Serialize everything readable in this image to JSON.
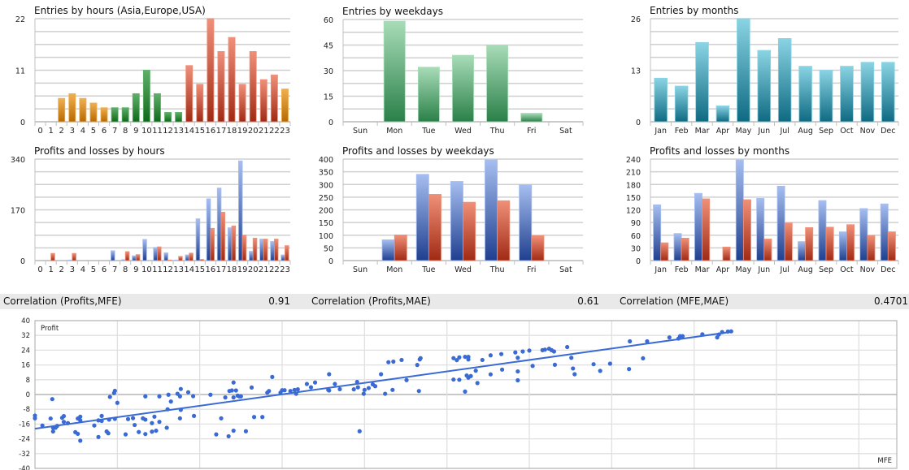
{
  "colors": {
    "Asia": [
      "#f0b050",
      "#b86a00"
    ],
    "Europe": [
      "#5fb06a",
      "#0f6a1a"
    ],
    "USA": [
      "#f0907a",
      "#a02a14"
    ],
    "profit": [
      "#a6bef0",
      "#1f3f8f"
    ],
    "loss": [
      "#f09078",
      "#a02a14"
    ],
    "weekday": [
      "#a8dcb8",
      "#2a8048"
    ],
    "month": [
      "#8ad4e4",
      "#0e6a82"
    ],
    "scatter": "#3a6ad4"
  },
  "chart_data": [
    {
      "type": "bar",
      "title": "Entries by hours (Asia,Europe,USA)",
      "categories": [
        "0",
        "1",
        "2",
        "3",
        "4",
        "5",
        "6",
        "7",
        "8",
        "9",
        "10",
        "11",
        "12",
        "13",
        "14",
        "15",
        "16",
        "17",
        "18",
        "19",
        "20",
        "21",
        "22",
        "23"
      ],
      "series": [
        {
          "name": "Entries",
          "values": [
            0,
            0,
            5,
            6,
            5,
            4,
            3,
            3,
            3,
            6,
            11,
            6,
            2,
            2,
            12,
            8,
            22,
            15,
            18,
            8,
            15,
            9,
            10,
            7
          ]
        }
      ],
      "bar_regions": [
        "Asia",
        "Asia",
        "Asia",
        "Asia",
        "Asia",
        "Asia",
        "Asia",
        "Europe",
        "Europe",
        "Europe",
        "Europe",
        "Europe",
        "Europe",
        "Europe",
        "USA",
        "USA",
        "USA",
        "USA",
        "USA",
        "USA",
        "USA",
        "USA",
        "USA",
        "Asia"
      ],
      "ylim": [
        0,
        22
      ],
      "yticks": [
        0,
        11,
        22
      ],
      "grid_divisions": 8,
      "grid": true
    },
    {
      "type": "bar",
      "title": "Entries by weekdays",
      "categories": [
        "Sun",
        "Mon",
        "Tue",
        "Wed",
        "Thu",
        "Fri",
        "Sat"
      ],
      "series": [
        {
          "name": "Entries",
          "values": [
            0,
            59,
            32,
            39,
            45,
            5,
            0
          ],
          "color": "weekday"
        }
      ],
      "ylim": [
        0,
        60
      ],
      "yticks": [
        0,
        15,
        30,
        45,
        60
      ],
      "grid_divisions": 8,
      "grid": true
    },
    {
      "type": "bar",
      "title": "Entries by months",
      "categories": [
        "Jan",
        "Feb",
        "Mar",
        "Apr",
        "May",
        "Jun",
        "Jul",
        "Aug",
        "Sep",
        "Oct",
        "Nov",
        "Dec"
      ],
      "series": [
        {
          "name": "Entries",
          "values": [
            11,
            9,
            20,
            4,
            26,
            18,
            21,
            14,
            13,
            14,
            15,
            15
          ],
          "color": "month"
        }
      ],
      "ylim": [
        0,
        26
      ],
      "yticks": [
        0,
        13,
        26
      ],
      "grid_divisions": 8,
      "grid": true
    },
    {
      "type": "bar",
      "title": "Profits and losses by hours",
      "categories": [
        "0",
        "1",
        "2",
        "3",
        "4",
        "5",
        "6",
        "7",
        "8",
        "9",
        "10",
        "11",
        "12",
        "13",
        "14",
        "15",
        "16",
        "17",
        "18",
        "19",
        "20",
        "21",
        "22",
        "23"
      ],
      "series": [
        {
          "name": "Profits",
          "values": [
            0,
            0,
            0,
            2,
            0,
            0,
            0,
            33,
            3,
            16,
            71,
            44,
            26,
            2,
            19,
            140,
            207,
            243,
            110,
            334,
            31,
            72,
            64,
            19
          ],
          "color": "profit"
        },
        {
          "name": "Losses",
          "values": [
            0,
            24,
            0,
            24,
            0,
            0,
            0,
            0,
            30,
            20,
            0,
            46,
            2,
            14,
            25,
            4,
            108,
            162,
            116,
            85,
            75,
            72,
            72,
            50
          ],
          "color": "loss"
        }
      ],
      "ylim": [
        0,
        340
      ],
      "yticks": [
        0,
        170,
        340
      ],
      "grid_divisions": 8,
      "grid": true
    },
    {
      "type": "bar",
      "title": "Profits and losses by weekdays",
      "categories": [
        "Sun",
        "Mon",
        "Tue",
        "Wed",
        "Thu",
        "Fri",
        "Sat"
      ],
      "series": [
        {
          "name": "Profits",
          "values": [
            0,
            82,
            340,
            312,
            397,
            299,
            0
          ],
          "color": "profit"
        },
        {
          "name": "Losses",
          "values": [
            0,
            101,
            261,
            230,
            236,
            98,
            0
          ],
          "color": "loss"
        }
      ],
      "ylim": [
        0,
        400
      ],
      "yticks": [
        0,
        50,
        100,
        150,
        200,
        250,
        300,
        350,
        400
      ],
      "grid_divisions": 8,
      "grid": true
    },
    {
      "type": "bar",
      "title": "Profits and losses by months",
      "categories": [
        "Jan",
        "Feb",
        "Mar",
        "Apr",
        "May",
        "Jun",
        "Jul",
        "Aug",
        "Sep",
        "Oct",
        "Nov",
        "Dec"
      ],
      "series": [
        {
          "name": "Profits",
          "values": [
            132,
            64,
            159,
            0,
            238,
            147,
            176,
            45,
            142,
            68,
            123,
            134
          ],
          "color": "profit"
        },
        {
          "name": "Losses",
          "values": [
            42,
            53,
            146,
            32,
            144,
            51,
            89,
            78,
            79,
            85,
            59,
            68
          ],
          "color": "loss"
        }
      ],
      "ylim": [
        0,
        240
      ],
      "yticks": [
        0,
        30,
        60,
        90,
        120,
        150,
        180,
        210,
        240
      ],
      "grid_divisions": 8,
      "grid": true
    },
    {
      "type": "scatter",
      "xlabel": "MFE",
      "ylabel": "Profit",
      "ylim": [
        -40,
        40
      ],
      "yticks": [
        -40,
        -32,
        -24,
        -16,
        -8,
        0,
        8,
        16,
        24,
        32,
        40
      ],
      "xlim": [
        0,
        10.46
      ],
      "x_grid_step": 1,
      "trendline": {
        "slope": 6.2,
        "intercept": -18.5,
        "x_range": [
          0,
          8.45
        ]
      },
      "points": [
        [
          0,
          -11.4
        ],
        [
          0,
          -12.9
        ],
        [
          0.09,
          -16.8
        ],
        [
          0.21,
          -2.5
        ],
        [
          0.19,
          -13
        ],
        [
          0.22,
          -18
        ],
        [
          0.22,
          -20
        ],
        [
          0.25,
          -18
        ],
        [
          0.27,
          -17
        ],
        [
          0.33,
          -12.6
        ],
        [
          0.35,
          -11.7
        ],
        [
          0.35,
          -14.8
        ],
        [
          0.4,
          -15.5
        ],
        [
          0.49,
          -20.4
        ],
        [
          0.52,
          -21.3
        ],
        [
          0.55,
          -25
        ],
        [
          0.52,
          -13
        ],
        [
          0.55,
          -12
        ],
        [
          0.55,
          -14
        ],
        [
          0.72,
          -16.8
        ],
        [
          0.77,
          -23
        ],
        [
          0.77,
          -14
        ],
        [
          0.81,
          -14.3
        ],
        [
          0.81,
          -11.6
        ],
        [
          0.87,
          -20
        ],
        [
          0.89,
          -21
        ],
        [
          0.9,
          -13.6
        ],
        [
          0.91,
          -1.3
        ],
        [
          0.96,
          0.8
        ],
        [
          0.97,
          2
        ],
        [
          0.97,
          -13.2
        ],
        [
          1.0,
          -4.5
        ],
        [
          1.1,
          -21.6
        ],
        [
          1.13,
          -13.3
        ],
        [
          1.19,
          -12.8
        ],
        [
          1.21,
          -16.5
        ],
        [
          1.26,
          -20.3
        ],
        [
          1.31,
          -12.9
        ],
        [
          1.34,
          -13.6
        ],
        [
          1.34,
          -1
        ],
        [
          1.34,
          -21.4
        ],
        [
          1.42,
          -15.5
        ],
        [
          1.42,
          -20.1
        ],
        [
          1.45,
          -12
        ],
        [
          1.47,
          -19.6
        ],
        [
          1.51,
          -14.8
        ],
        [
          1.51,
          -1
        ],
        [
          1.6,
          -18
        ],
        [
          1.61,
          -8
        ],
        [
          1.62,
          -0.1
        ],
        [
          1.65,
          -3.8
        ],
        [
          1.73,
          0.4
        ],
        [
          1.76,
          -12.9
        ],
        [
          1.76,
          -1
        ],
        [
          1.77,
          3
        ],
        [
          1.77,
          -8.3
        ],
        [
          1.86,
          1.2
        ],
        [
          1.92,
          -0.9
        ],
        [
          1.93,
          -11.6
        ],
        [
          2.13,
          -0.1
        ],
        [
          2.2,
          -21.6
        ],
        [
          2.26,
          -12.9
        ],
        [
          2.31,
          -1.6
        ],
        [
          2.35,
          -22.6
        ],
        [
          2.36,
          1.9
        ],
        [
          2.39,
          2.2
        ],
        [
          2.41,
          6.5
        ],
        [
          2.41,
          -1.6
        ],
        [
          2.41,
          -19.6
        ],
        [
          2.44,
          2.2
        ],
        [
          2.46,
          -0.6
        ],
        [
          2.48,
          -1
        ],
        [
          2.5,
          -1
        ],
        [
          2.56,
          -19.9
        ],
        [
          2.63,
          3.8
        ],
        [
          2.66,
          -12.2
        ],
        [
          2.76,
          -12.2
        ],
        [
          2.82,
          1
        ],
        [
          2.84,
          1.9
        ],
        [
          2.88,
          9.5
        ],
        [
          2.98,
          1
        ],
        [
          3.0,
          2.3
        ],
        [
          3.03,
          2.3
        ],
        [
          3.1,
          1.9
        ],
        [
          3.15,
          2.5
        ],
        [
          3.17,
          0.4
        ],
        [
          3.19,
          2.8
        ],
        [
          3.3,
          5.7
        ],
        [
          3.35,
          3.9
        ],
        [
          3.4,
          6.5
        ],
        [
          3.56,
          2.5
        ],
        [
          3.57,
          11
        ],
        [
          3.57,
          2.2
        ],
        [
          3.64,
          5.7
        ],
        [
          3.7,
          2.9
        ],
        [
          3.87,
          2.8
        ],
        [
          3.91,
          6.8
        ],
        [
          3.92,
          3.9
        ],
        [
          3.94,
          -19.9
        ],
        [
          3.99,
          0.4
        ],
        [
          4.0,
          2.5
        ],
        [
          4.05,
          3.5
        ],
        [
          4.1,
          5.5
        ],
        [
          4.13,
          4.5
        ],
        [
          4.2,
          11
        ],
        [
          4.25,
          0.4
        ],
        [
          4.29,
          17.5
        ],
        [
          4.34,
          2.5
        ],
        [
          4.35,
          17.8
        ],
        [
          4.45,
          18.7
        ],
        [
          4.51,
          7.8
        ],
        [
          4.64,
          16
        ],
        [
          4.66,
          1.9
        ],
        [
          4.67,
          19
        ],
        [
          4.68,
          19.7
        ],
        [
          5.08,
          19.7
        ],
        [
          5.12,
          18.6
        ],
        [
          5.15,
          20.1
        ],
        [
          5.22,
          20.4
        ],
        [
          5.26,
          20.4
        ],
        [
          5.26,
          19
        ],
        [
          5.43,
          18.7
        ],
        [
          5.53,
          21.2
        ],
        [
          5.66,
          21.9
        ],
        [
          5.83,
          22.8
        ],
        [
          5.86,
          19.9
        ],
        [
          5.92,
          23.3
        ],
        [
          6.0,
          23.8
        ],
        [
          6.16,
          24
        ],
        [
          6.19,
          24.3
        ],
        [
          6.24,
          24.8
        ],
        [
          6.27,
          24
        ],
        [
          6.3,
          23.3
        ],
        [
          6.46,
          25.7
        ],
        [
          6.51,
          19.9
        ],
        [
          7.22,
          28.8
        ],
        [
          7.43,
          28.8
        ],
        [
          7.38,
          19.6
        ],
        [
          7.7,
          30.9
        ],
        [
          7.81,
          30.3
        ],
        [
          7.83,
          31.6
        ],
        [
          7.86,
          31.6
        ],
        [
          8.1,
          32.6
        ],
        [
          8.28,
          30.9
        ],
        [
          8.3,
          32.5
        ],
        [
          8.34,
          33.8
        ],
        [
          8.41,
          34.1
        ],
        [
          8.45,
          34.2
        ],
        [
          5.08,
          8.1
        ],
        [
          5.15,
          8
        ],
        [
          5.22,
          1.6
        ],
        [
          5.24,
          10.3
        ],
        [
          5.26,
          9.1
        ],
        [
          5.29,
          10
        ],
        [
          5.35,
          12.9
        ],
        [
          5.37,
          6.2
        ],
        [
          5.53,
          10.9
        ],
        [
          5.67,
          13.5
        ],
        [
          5.86,
          12.5
        ],
        [
          5.86,
          7.7
        ],
        [
          6.04,
          15.5
        ],
        [
          6.31,
          16.1
        ],
        [
          6.53,
          14.1
        ],
        [
          6.55,
          11
        ],
        [
          6.78,
          16.4
        ],
        [
          6.86,
          12.8
        ],
        [
          6.98,
          16.7
        ],
        [
          7.21,
          13.8
        ]
      ]
    }
  ],
  "correlations": [
    {
      "label": "Correlation (Profits,MFE)",
      "value": "0.91"
    },
    {
      "label": "Correlation (Profits,MAE)",
      "value": "0.61"
    },
    {
      "label": "Correlation (MFE,MAE)",
      "value": "0.4701"
    }
  ]
}
